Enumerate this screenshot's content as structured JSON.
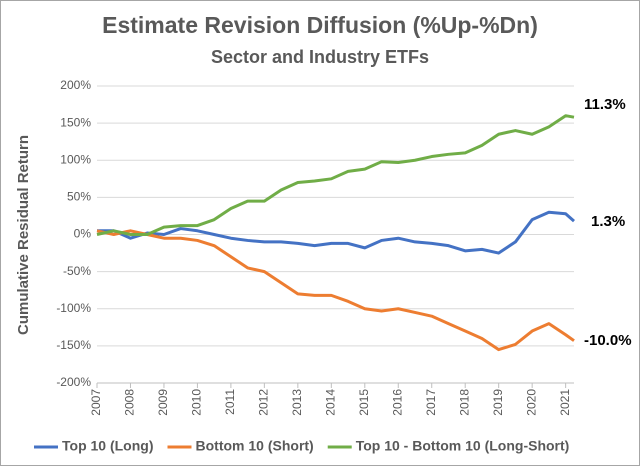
{
  "chart_data": {
    "type": "line",
    "title": "Estimate Revision Diffusion (%Up-%Dn)",
    "subtitle": "Sector and Industry ETFs",
    "y_label": "Cumulative Residual Return",
    "x": [
      2007,
      2007.5,
      2008,
      2008.5,
      2009,
      2009.5,
      2010,
      2010.5,
      2011,
      2011.5,
      2012,
      2012.5,
      2013,
      2013.5,
      2014,
      2014.5,
      2015,
      2015.5,
      2016,
      2016.5,
      2017,
      2017.5,
      2018,
      2018.5,
      2019,
      2019.5,
      2020,
      2020.5,
      2021,
      2021.25
    ],
    "series": [
      {
        "name": "Top 10 (Long)",
        "color": "#4472c4",
        "values": [
          5,
          5,
          -5,
          2,
          0,
          8,
          5,
          0,
          -5,
          -8,
          -10,
          -10,
          -12,
          -15,
          -12,
          -12,
          -18,
          -8,
          -5,
          -10,
          -12,
          -15,
          -22,
          -20,
          -25,
          -10,
          20,
          30,
          28,
          18
        ]
      },
      {
        "name": "Bottom 10 (Short)",
        "color": "#ed7d31",
        "values": [
          5,
          0,
          5,
          0,
          -5,
          -5,
          -8,
          -15,
          -30,
          -45,
          -50,
          -65,
          -80,
          -82,
          -82,
          -90,
          -100,
          -103,
          -100,
          -105,
          -110,
          -120,
          -130,
          -140,
          -155,
          -148,
          -130,
          -120,
          -135,
          -143
        ]
      },
      {
        "name": "Top 10 - Bottom 10 (Long-Short)",
        "color": "#70ad47",
        "values": [
          0,
          5,
          0,
          0,
          10,
          12,
          12,
          20,
          35,
          45,
          45,
          60,
          70,
          72,
          75,
          85,
          88,
          98,
          97,
          100,
          105,
          108,
          110,
          120,
          135,
          140,
          135,
          145,
          160,
          158
        ]
      }
    ],
    "annotations": [
      "11.3%",
      "1.3%",
      "-10.0%"
    ],
    "xlim": [
      2007,
      2021.25
    ],
    "xticks": [
      2007,
      2008,
      2009,
      2010,
      2011,
      2012,
      2013,
      2014,
      2015,
      2016,
      2017,
      2018,
      2019,
      2020,
      2021
    ],
    "ylim": [
      -200,
      200
    ],
    "yticks": [
      {
        "value": -200,
        "label": "-200%"
      },
      {
        "value": -150,
        "label": "-150%"
      },
      {
        "value": -100,
        "label": "-100%"
      },
      {
        "value": -50,
        "label": "-50%"
      },
      {
        "value": 0,
        "label": "0%"
      },
      {
        "value": 50,
        "label": "50%"
      },
      {
        "value": 100,
        "label": "100%"
      },
      {
        "value": 150,
        "label": "150%"
      },
      {
        "value": 200,
        "label": "200%"
      }
    ],
    "grid": true,
    "legend": "bottom"
  }
}
